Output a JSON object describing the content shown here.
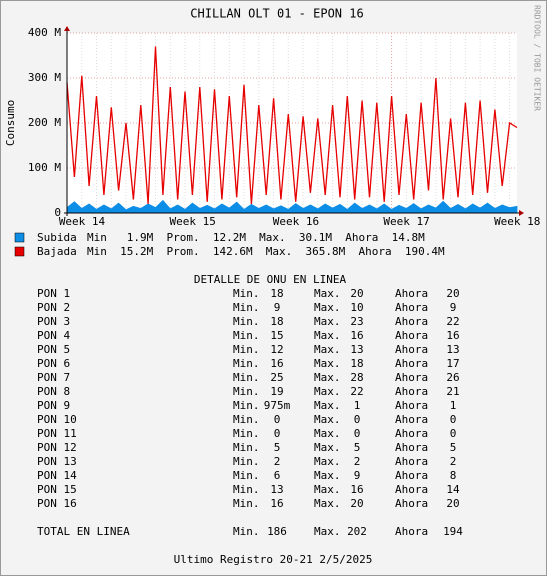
{
  "chart_data": {
    "type": "line",
    "title": "CHILLAN OLT 01 - EPON 16",
    "y_label": "Consumo",
    "side_text": "RRDTOOL / TOBI OETIKER",
    "categories": [
      "Week 14",
      null,
      null,
      null,
      null,
      null,
      null,
      null,
      null,
      null,
      null,
      null,
      null,
      null,
      null,
      "Week 15",
      null,
      null,
      null,
      null,
      null,
      null,
      null,
      null,
      null,
      null,
      null,
      null,
      null,
      "Week 16",
      null,
      null,
      null,
      null,
      null,
      null,
      null,
      null,
      null,
      null,
      null,
      null,
      null,
      null,
      "Week 17",
      null,
      null,
      null,
      null,
      null,
      null,
      null,
      null,
      null,
      null,
      null,
      null,
      null,
      null,
      "Week 18",
      null,
      null
    ],
    "series": [
      {
        "name": "Subida",
        "color": "#0d8ee6",
        "stats": "Min   1.9M  Prom.  12.2M  Max.  30.1M  Ahora  14.8M",
        "values": [
          12,
          25,
          10,
          20,
          8,
          18,
          9,
          22,
          7,
          15,
          10,
          20,
          12,
          28,
          9,
          18,
          8,
          22,
          10,
          17,
          9,
          20,
          11,
          24,
          8,
          19,
          10,
          18,
          9,
          16,
          8,
          21,
          10,
          18,
          9,
          20,
          11,
          19,
          8,
          22,
          10,
          18,
          9,
          20,
          8,
          17,
          10,
          21,
          9,
          18,
          11,
          26,
          10,
          19,
          9,
          20,
          11,
          22,
          10,
          18,
          12,
          15
        ]
      },
      {
        "name": "Bajada",
        "color": "#e60000",
        "stats": "Min  15.2M  Prom.  142.6M  Max.  365.8M  Ahora  190.4M",
        "values": [
          290,
          80,
          305,
          60,
          260,
          40,
          235,
          50,
          200,
          30,
          240,
          20,
          370,
          40,
          280,
          30,
          270,
          40,
          280,
          25,
          275,
          30,
          260,
          35,
          285,
          20,
          240,
          40,
          255,
          30,
          220,
          25,
          215,
          45,
          210,
          40,
          240,
          35,
          260,
          30,
          250,
          35,
          245,
          25,
          260,
          40,
          220,
          30,
          245,
          50,
          300,
          30,
          210,
          35,
          245,
          40,
          250,
          45,
          230,
          60,
          200,
          190
        ]
      }
    ],
    "ylim": [
      0,
      400
    ],
    "yticks": [
      0,
      {
        "value": 100,
        "label": "100 M"
      },
      {
        "value": 200,
        "label": "200 M"
      },
      {
        "value": 300,
        "label": "300 M"
      },
      {
        "value": 400,
        "label": "400 M"
      }
    ],
    "grid": true
  },
  "detail": {
    "title": "DETALLE DE ONU EN LINEA",
    "labels": [
      "Min.",
      "Max.",
      "Ahora"
    ],
    "rows": [
      [
        "PON 1",
        "18",
        "20",
        "20"
      ],
      [
        "PON 2",
        "9",
        "10",
        "9"
      ],
      [
        "PON 3",
        "18",
        "23",
        "22"
      ],
      [
        "PON 4",
        "15",
        "16",
        "16"
      ],
      [
        "PON 5",
        "12",
        "13",
        "13"
      ],
      [
        "PON 6",
        "16",
        "18",
        "17"
      ],
      [
        "PON 7",
        "25",
        "28",
        "26"
      ],
      [
        "PON 8",
        "19",
        "22",
        "21"
      ],
      [
        "PON 9",
        "975m",
        "1",
        "1"
      ],
      [
        "PON 10",
        "0",
        "0",
        "0"
      ],
      [
        "PON 11",
        "0",
        "0",
        "0"
      ],
      [
        "PON 12",
        "5",
        "5",
        "5"
      ],
      [
        "PON 13",
        "2",
        "2",
        "2"
      ],
      [
        "PON 14",
        "6",
        "9",
        "8"
      ],
      [
        "PON 15",
        "13",
        "16",
        "14"
      ],
      [
        "PON 16",
        "16",
        "20",
        "20"
      ]
    ],
    "total": [
      "TOTAL EN LINEA",
      "186",
      "202",
      "194"
    ],
    "footer": "Ultimo Registro 20-21 2/5/2025"
  }
}
